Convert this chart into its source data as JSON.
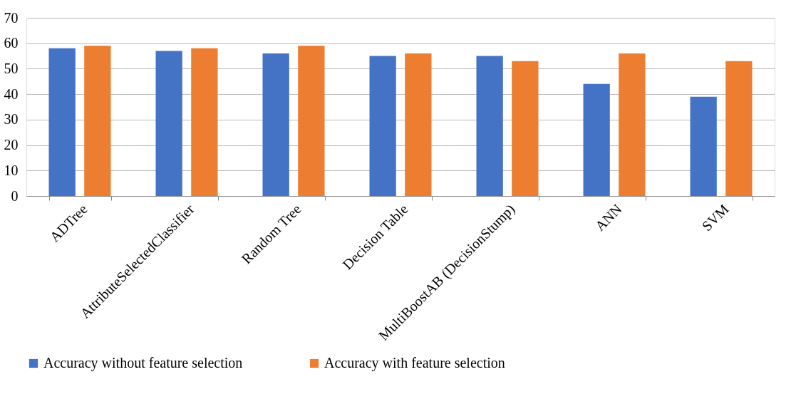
{
  "chart_data": {
    "type": "bar",
    "categories": [
      "ADTree",
      "AttributeSelectedClassifier",
      "Random Tree",
      "Decision Table",
      "MultiBoostAB (DecisionStump)",
      "ANN",
      "SVM"
    ],
    "series": [
      {
        "name": "Accuracy without feature selection",
        "color": "#4472c4",
        "values": [
          58,
          57,
          56,
          55,
          55,
          44,
          39
        ]
      },
      {
        "name": "Accuracy with feature selection",
        "color": "#ed7d31",
        "values": [
          59,
          58,
          59,
          56,
          53,
          56,
          53
        ]
      }
    ],
    "ylim": [
      0,
      70
    ],
    "yticks": [
      0,
      10,
      20,
      30,
      40,
      50,
      60,
      70
    ],
    "grid": "y",
    "legend": "bottom"
  }
}
